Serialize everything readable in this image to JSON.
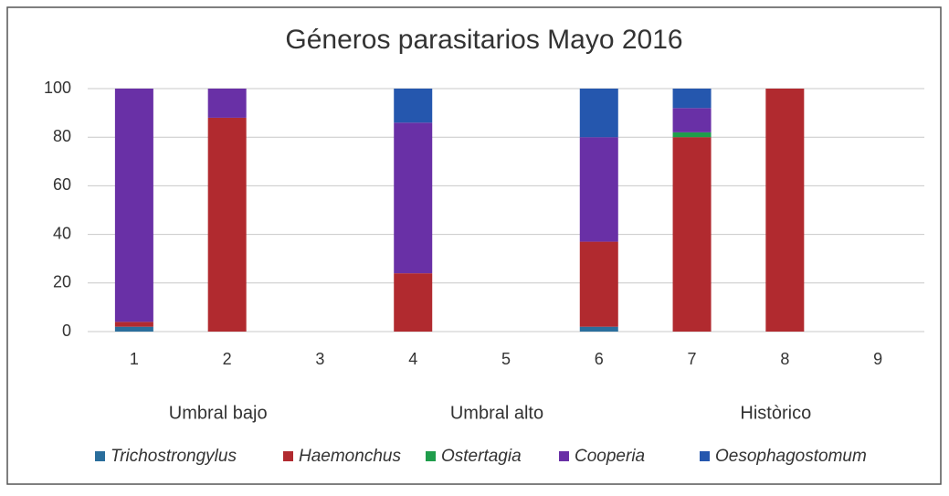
{
  "chart_data": {
    "type": "stacked_bar",
    "title": "Géneros parasitarios Mayo 2016",
    "categories": [
      "1",
      "2",
      "3",
      "4",
      "5",
      "6",
      "7",
      "8",
      "9"
    ],
    "group_labels": [
      "Umbral bajo",
      "Umbral alto",
      "Històrico"
    ],
    "series": [
      {
        "name": "Trichostrongylus",
        "color": "#2a6e9c",
        "values": [
          2,
          0,
          0,
          0,
          0,
          2,
          0,
          0,
          0
        ]
      },
      {
        "name": "Haemonchus",
        "color": "#b12a2f",
        "values": [
          2,
          88,
          0,
          24,
          0,
          35,
          80,
          100,
          0
        ]
      },
      {
        "name": "Ostertagia",
        "color": "#1f9d4b",
        "values": [
          0,
          0,
          0,
          0,
          0,
          0,
          2,
          0,
          0
        ]
      },
      {
        "name": "Cooperia",
        "color": "#6930a6",
        "values": [
          96,
          12,
          0,
          62,
          0,
          43,
          10,
          0,
          0
        ]
      },
      {
        "name": "Oesophagostomum",
        "color": "#2557ae",
        "values": [
          0,
          0,
          0,
          14,
          0,
          20,
          8,
          0,
          0
        ]
      }
    ],
    "ylim": [
      0,
      100
    ],
    "yticks": [
      0,
      20,
      40,
      60,
      80,
      100
    ],
    "grid": true,
    "legend": "bottom"
  }
}
